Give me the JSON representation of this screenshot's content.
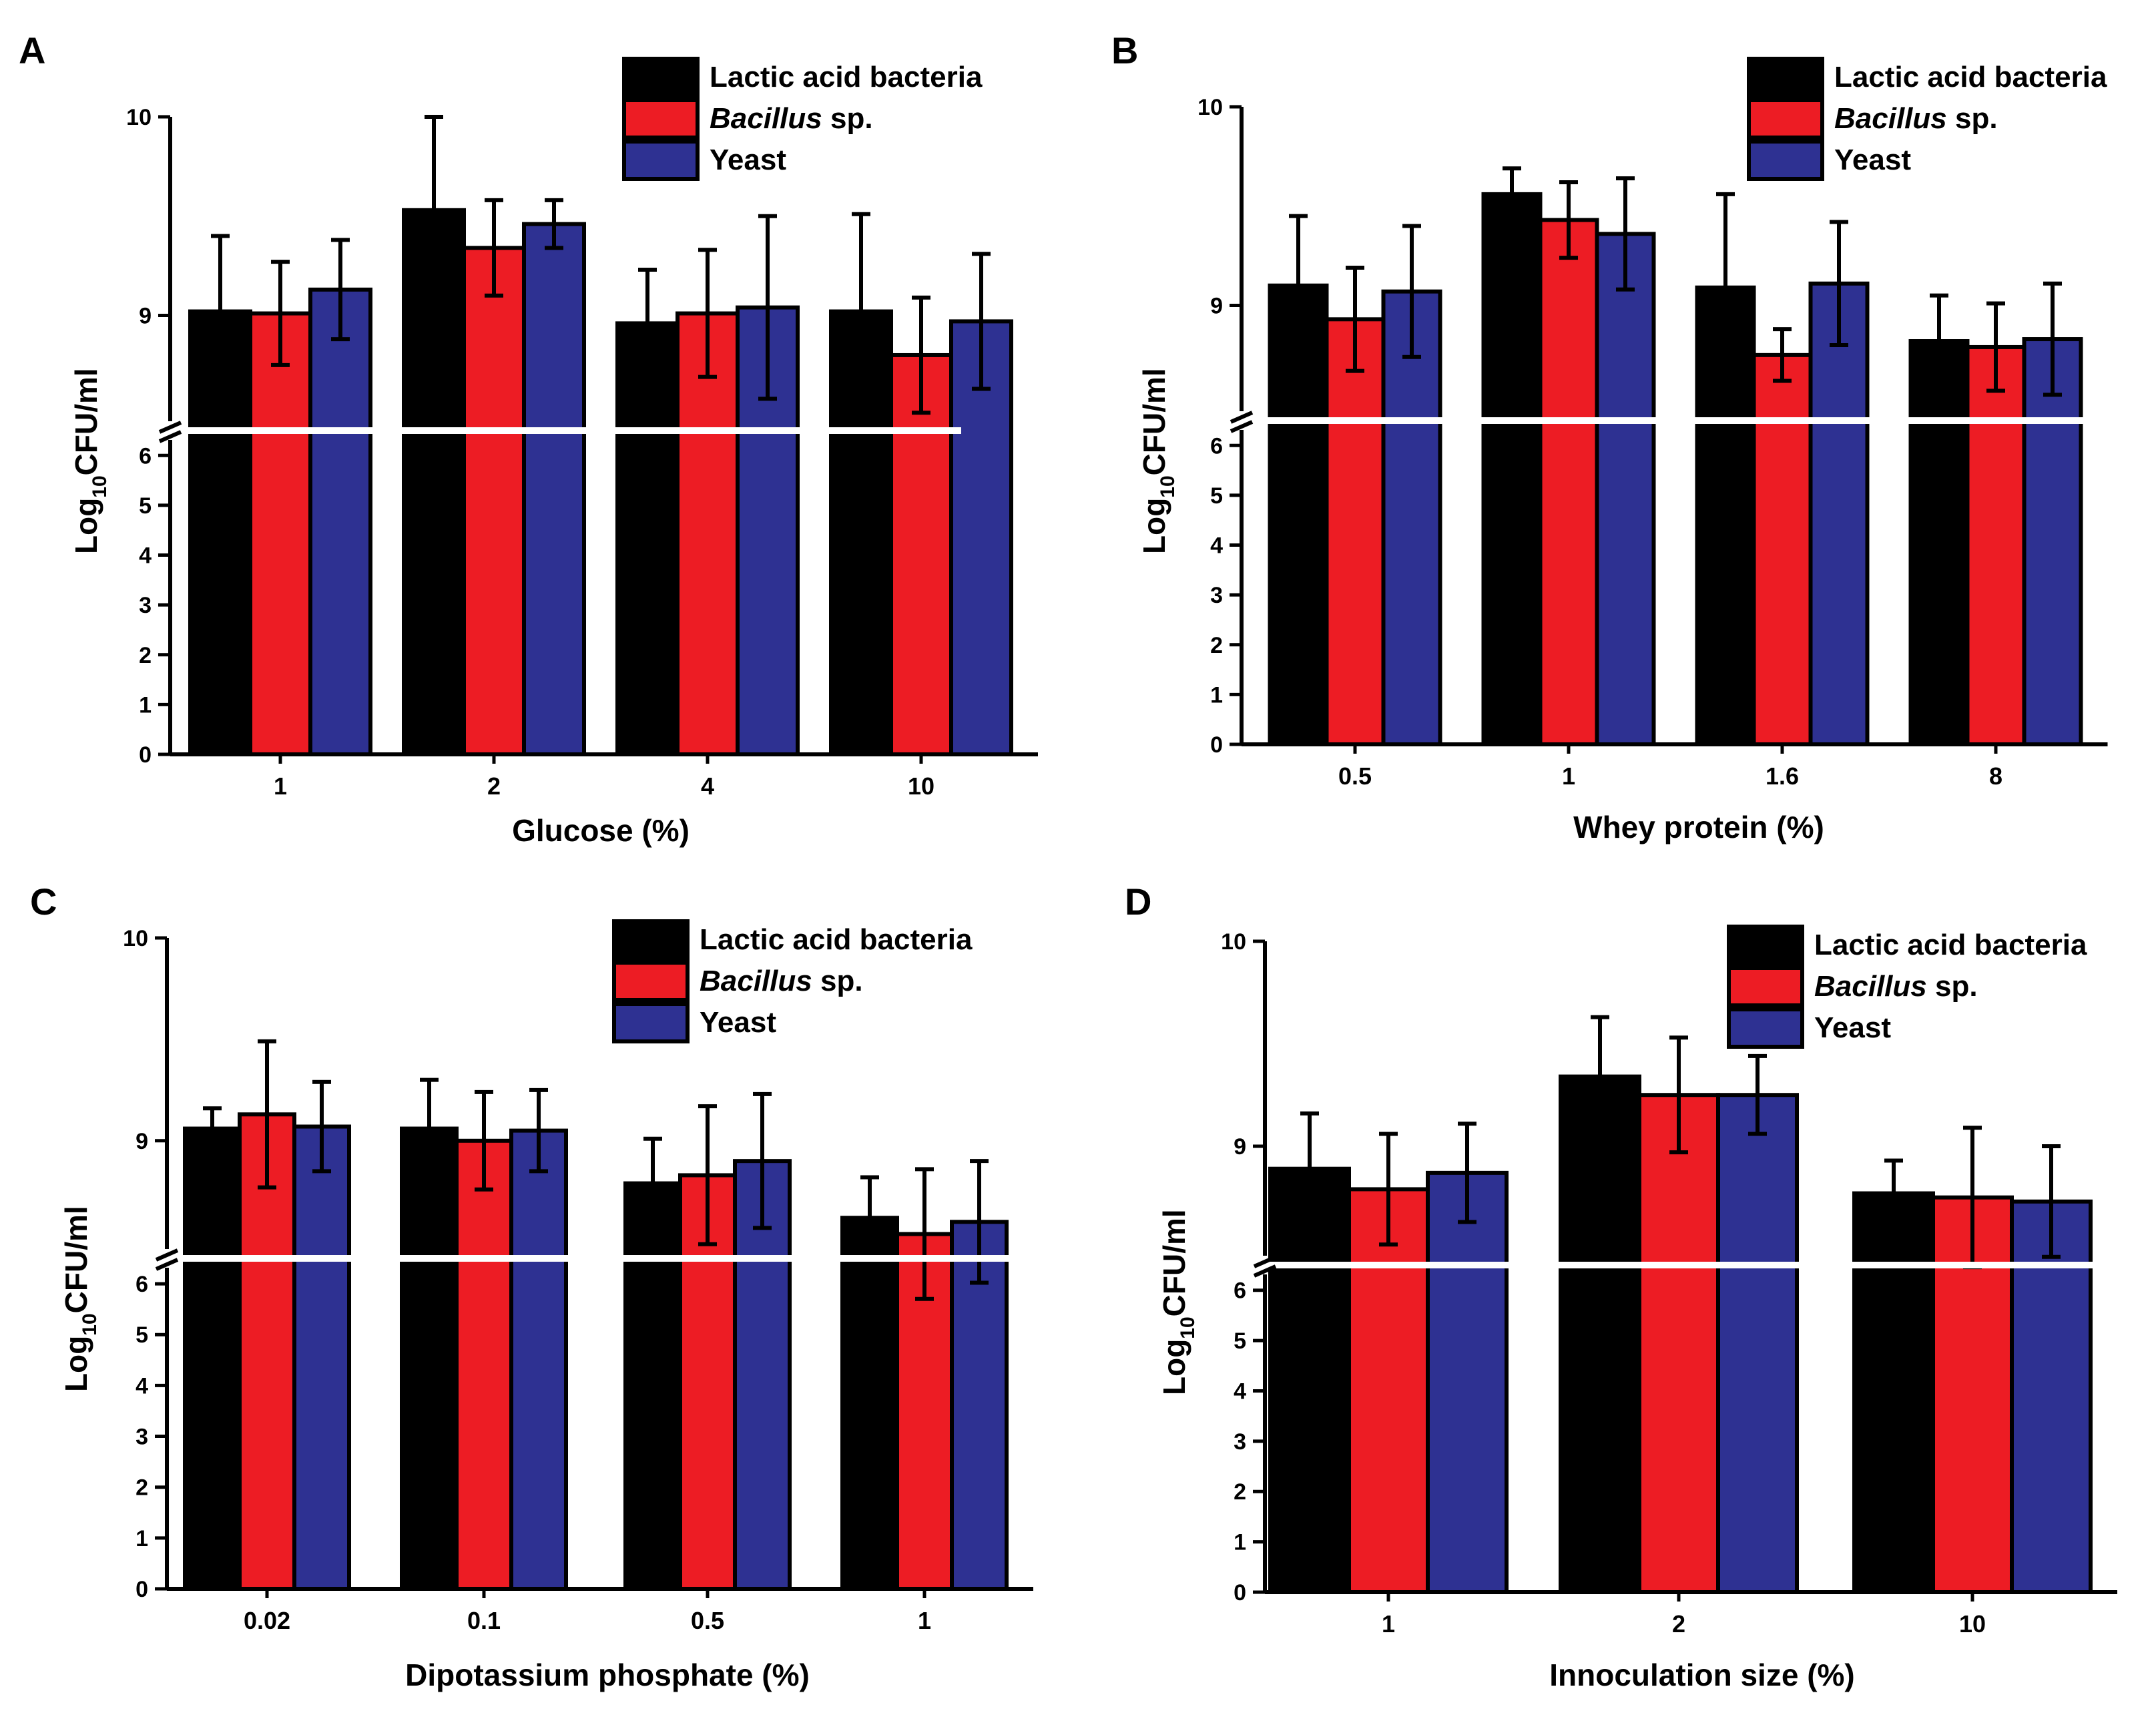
{
  "figure": {
    "ylabel_prefix": "Log",
    "ylabel_subscript": "10",
    "ylabel_suffix": "CFU/ml"
  },
  "legend": {
    "entries": [
      {
        "italic": "",
        "rest": "Lactic acid bacteria"
      },
      {
        "italic": "Bacillus",
        "rest": " sp."
      },
      {
        "italic": "",
        "rest": "Yeast"
      }
    ]
  },
  "colors": {
    "series": [
      "#000000",
      "#ed1c24",
      "#2e3192"
    ],
    "axis": "#000000",
    "break_line": "#ffffff"
  },
  "chart_data": [
    {
      "panel": "A",
      "type": "bar",
      "xlabel": "Glucose (%)",
      "ylabel": "Log10CFU/ml",
      "categories": [
        "1",
        "2",
        "4",
        "10"
      ],
      "series": [
        {
          "name": "Lactic acid bacteria",
          "values": [
            9.02,
            9.53,
            8.96,
            9.02
          ],
          "errors": [
            0.38,
            0.47,
            0.27,
            0.49
          ]
        },
        {
          "name": "Bacillus sp.",
          "values": [
            9.01,
            9.34,
            9.01,
            8.8
          ],
          "errors": [
            0.26,
            0.24,
            0.32,
            0.29
          ]
        },
        {
          "name": "Yeast",
          "values": [
            9.13,
            9.46,
            9.04,
            8.97
          ],
          "errors": [
            0.25,
            0.12,
            0.46,
            0.34
          ]
        }
      ],
      "lower_ticks": [
        "0",
        "1",
        "2",
        "3",
        "4",
        "5",
        "6"
      ],
      "upper_ticks": [
        "9",
        "10"
      ],
      "lower_range": [
        0,
        6.5
      ],
      "upper_range": [
        8.42,
        10
      ],
      "axis_break": true
    },
    {
      "panel": "B",
      "type": "bar",
      "xlabel": "Whey protein (%)",
      "ylabel": "Log10CFU/ml",
      "categories": [
        "0.5",
        "1",
        "1.6",
        "8"
      ],
      "series": [
        {
          "name": "Lactic acid bacteria",
          "values": [
            9.1,
            9.56,
            9.09,
            8.82
          ],
          "errors": [
            0.35,
            0.13,
            0.47,
            0.23
          ]
        },
        {
          "name": "Bacillus sp.",
          "values": [
            8.93,
            9.43,
            8.75,
            8.79
          ],
          "errors": [
            0.26,
            0.19,
            0.13,
            0.22
          ]
        },
        {
          "name": "Yeast",
          "values": [
            9.07,
            9.36,
            9.11,
            8.83
          ],
          "errors": [
            0.33,
            0.28,
            0.31,
            0.28
          ]
        }
      ],
      "lower_ticks": [
        "0",
        "1",
        "2",
        "3",
        "4",
        "5",
        "6"
      ],
      "upper_ticks": [
        "9",
        "10"
      ],
      "lower_range": [
        0,
        6.5
      ],
      "upper_range": [
        8.42,
        10
      ],
      "axis_break": true
    },
    {
      "panel": "C",
      "type": "bar",
      "xlabel": "Dipotassium phosphate (%)",
      "ylabel": "Log10CFU/ml",
      "categories": [
        "0.02",
        "0.1",
        "0.5",
        "1"
      ],
      "series": [
        {
          "name": "Lactic acid bacteria",
          "values": [
            9.06,
            9.06,
            8.79,
            8.62
          ],
          "errors": [
            0.1,
            0.24,
            0.22,
            0.2
          ]
        },
        {
          "name": "Bacillus sp.",
          "values": [
            9.13,
            9.0,
            8.83,
            8.54
          ],
          "errors": [
            0.36,
            0.24,
            0.34,
            0.32
          ]
        },
        {
          "name": "Yeast",
          "values": [
            9.07,
            9.05,
            8.9,
            8.6
          ],
          "errors": [
            0.22,
            0.2,
            0.33,
            0.3
          ]
        }
      ],
      "lower_ticks": [
        "0",
        "1",
        "2",
        "3",
        "4",
        "5",
        "6"
      ],
      "upper_ticks": [
        "9",
        "10"
      ],
      "lower_range": [
        0,
        6.5
      ],
      "upper_range": [
        8.42,
        10
      ],
      "axis_break": true
    },
    {
      "panel": "D",
      "type": "bar",
      "xlabel": "Innoculation size (%)",
      "ylabel": "Log10CFU/ml",
      "categories": [
        "1",
        "2",
        "10"
      ],
      "series": [
        {
          "name": "Lactic acid bacteria",
          "values": [
            8.89,
            9.34,
            8.77
          ],
          "errors": [
            0.27,
            0.29,
            0.16
          ]
        },
        {
          "name": "Bacillus sp.",
          "values": [
            8.79,
            9.25,
            8.75
          ],
          "errors": [
            0.27,
            0.28,
            0.34
          ]
        },
        {
          "name": "Yeast",
          "values": [
            8.87,
            9.25,
            8.73
          ],
          "errors": [
            0.24,
            0.19,
            0.27
          ]
        }
      ],
      "lower_ticks": [
        "0",
        "1",
        "2",
        "3",
        "4",
        "5",
        "6"
      ],
      "upper_ticks": [
        "9",
        "10"
      ],
      "lower_range": [
        0,
        6.5
      ],
      "upper_range": [
        8.42,
        10
      ],
      "axis_break": true
    }
  ]
}
